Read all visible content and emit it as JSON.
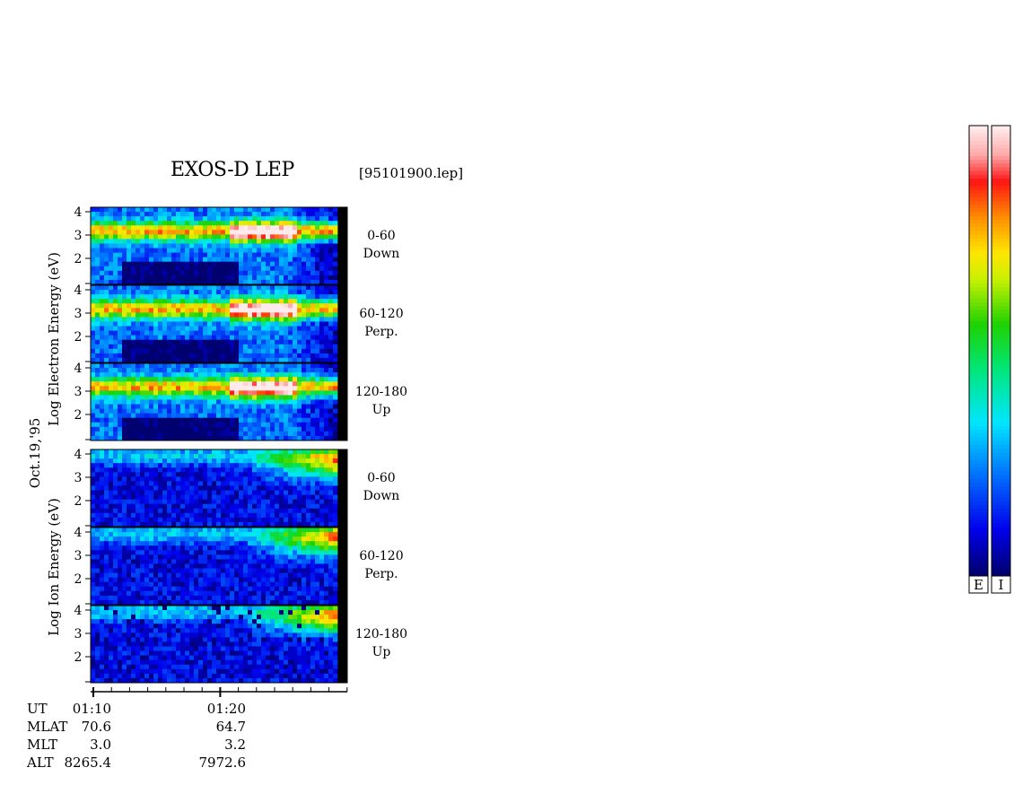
{
  "header": {
    "title": "EXOS-D LEP",
    "file": "[95101900.lep]"
  },
  "date_label": "Oct.19,'95",
  "electron_ylabel": [
    "Log",
    "Electron",
    "Energy",
    "(eV)"
  ],
  "ion_ylabel": [
    "Log",
    "Ion",
    "Energy",
    "(eV)"
  ],
  "panels": [
    {
      "angle": "0-60",
      "dir": "Down",
      "species": "electron"
    },
    {
      "angle": "60-120",
      "dir": "Perp.",
      "species": "electron"
    },
    {
      "angle": "120-180",
      "dir": "Up",
      "species": "electron"
    },
    {
      "angle": "0-60",
      "dir": "Down",
      "species": "ion"
    },
    {
      "angle": "60-120",
      "dir": "Perp.",
      "species": "ion"
    },
    {
      "angle": "120-180",
      "dir": "Up",
      "species": "ion"
    }
  ],
  "y_ticks": [
    "4",
    "3",
    "2"
  ],
  "orbit": {
    "rows": [
      {
        "label": "UT",
        "v1": "01:10",
        "v2": "01:20"
      },
      {
        "label": "MLAT",
        "v1": "70.6",
        "v2": "64.7"
      },
      {
        "label": "MLT",
        "v1": "3.0",
        "v2": "3.2"
      },
      {
        "label": "ALT",
        "v1": "8265.4",
        "v2": "7972.6"
      }
    ]
  },
  "colorbars": [
    {
      "label": "E"
    },
    {
      "label": "I"
    }
  ],
  "chart_data": {
    "type": "heatmap",
    "title": "EXOS-D LEP",
    "x": {
      "ticks": [
        "01:10",
        "01:20"
      ]
    },
    "y": {
      "ticks": [
        2,
        3,
        4
      ]
    },
    "colorscale": [
      "#ffffff",
      "#ff0000",
      "#ff8800",
      "#ffff00",
      "#00dd00",
      "#00ffff",
      "#0088ff",
      "#0000ff",
      "#000066"
    ]
  }
}
